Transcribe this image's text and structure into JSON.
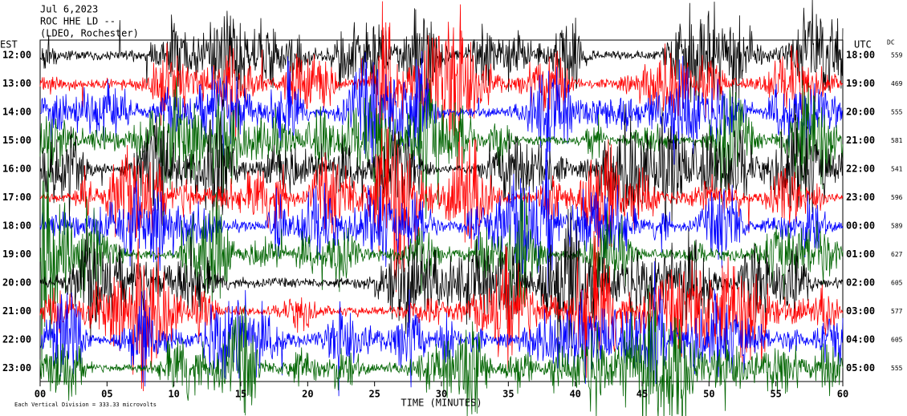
{
  "header": {
    "date": "Jul 6,2023",
    "station": "ROC HHE LD --",
    "network": "(LDEO, Rochester)"
  },
  "left_label": "EST",
  "right_label": "UTC",
  "dc_label": "DC",
  "rows": [
    {
      "est": "12:00",
      "utc": "18:00",
      "dc": 559,
      "color": "#000000"
    },
    {
      "est": "13:00",
      "utc": "19:00",
      "dc": 469,
      "color": "#ff0000"
    },
    {
      "est": "14:00",
      "utc": "20:00",
      "dc": 555,
      "color": "#0000ff"
    },
    {
      "est": "15:00",
      "utc": "21:00",
      "dc": 581,
      "color": "#006400"
    },
    {
      "est": "16:00",
      "utc": "22:00",
      "dc": 541,
      "color": "#000000"
    },
    {
      "est": "17:00",
      "utc": "23:00",
      "dc": 596,
      "color": "#ff0000"
    },
    {
      "est": "18:00",
      "utc": "00:00",
      "dc": 589,
      "color": "#0000ff"
    },
    {
      "est": "19:00",
      "utc": "01:00",
      "dc": 627,
      "color": "#006400"
    },
    {
      "est": "20:00",
      "utc": "02:00",
      "dc": 605,
      "color": "#000000"
    },
    {
      "est": "21:00",
      "utc": "03:00",
      "dc": 577,
      "color": "#ff0000"
    },
    {
      "est": "22:00",
      "utc": "04:00",
      "dc": 605,
      "color": "#0000ff"
    },
    {
      "est": "23:00",
      "utc": "05:00",
      "dc": 555,
      "color": "#006400"
    }
  ],
  "x_axis": {
    "label": "TIME (MINUTES)",
    "ticks": [
      "00",
      "05",
      "10",
      "15",
      "20",
      "25",
      "30",
      "35",
      "40",
      "45",
      "50",
      "55",
      "60"
    ]
  },
  "footer": "Each Vertical Division =  333.33 microvolts"
}
